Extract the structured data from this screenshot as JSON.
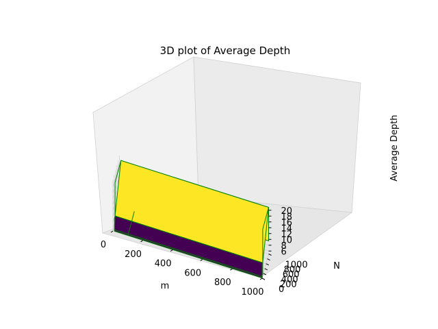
{
  "chart_data": {
    "type": "3d-surface",
    "title": "3D plot of Average Depth",
    "xlabel": "m",
    "ylabel": "N",
    "zlabel": "Average Depth",
    "xlim": [
      0,
      1000
    ],
    "ylim": [
      0,
      1000
    ],
    "zlim": [
      5,
      21
    ],
    "x_ticks": [
      "0",
      "200",
      "400",
      "600",
      "800",
      "1000"
    ],
    "y_ticks": [
      "0",
      "200",
      "400",
      "600",
      "800",
      "1000"
    ],
    "z_ticks": [
      "6",
      "8",
      "10",
      "12",
      "14",
      "16",
      "18",
      "20"
    ],
    "grid": true,
    "colormap": "viridis",
    "edge_color": "#008000",
    "colors": {
      "low": "#440154",
      "mid": "#26828e",
      "high": "#fde725"
    },
    "m": [
      10,
      100,
      1000
    ],
    "N": [
      10,
      100,
      1000
    ],
    "depth_samples": [
      {
        "m": 10,
        "N": 10,
        "depth": 5.5
      },
      {
        "m": 1000,
        "N": 10,
        "depth": 5.5
      },
      {
        "m": 10,
        "N": 100,
        "depth": 9.5
      },
      {
        "m": 1000,
        "N": 100,
        "depth": 9.5
      },
      {
        "m": 10,
        "N": 1000,
        "depth": 21
      },
      {
        "m": 1000,
        "N": 1000,
        "depth": 21
      }
    ]
  }
}
